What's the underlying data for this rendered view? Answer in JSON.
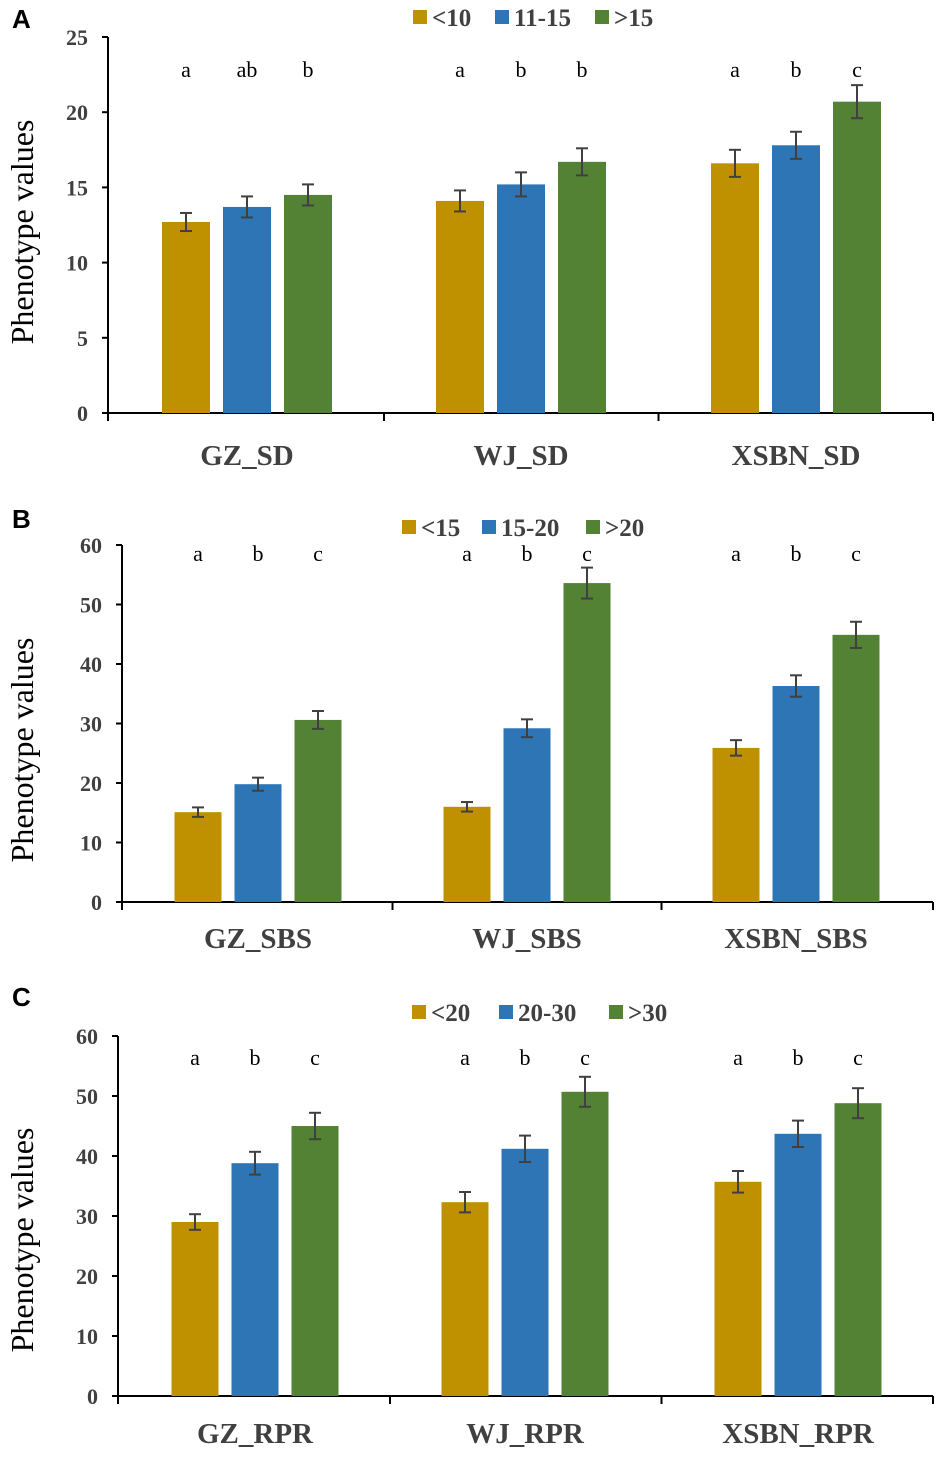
{
  "chart_data": [
    {
      "type": "bar",
      "panel_label": "A",
      "ylabel": "Phenotype values",
      "ylim": [
        0,
        25
      ],
      "yticks": [
        0,
        5,
        10,
        15,
        20,
        25
      ],
      "categories": [
        "GZ_SD",
        "WJ_SD",
        "XSBN_SD"
      ],
      "legend_position": "top-center",
      "grid": false,
      "series": [
        {
          "name": "<10",
          "color": "#BF9000",
          "values": [
            12.7,
            14.1,
            16.6
          ],
          "errors": [
            0.6,
            0.7,
            0.9
          ]
        },
        {
          "name": "11-15",
          "color": "#2E75B6",
          "values": [
            13.7,
            15.2,
            17.8
          ],
          "errors": [
            0.7,
            0.8,
            0.9
          ]
        },
        {
          "name": ">15",
          "color": "#548235",
          "values": [
            14.5,
            16.7,
            20.7
          ],
          "errors": [
            0.7,
            0.9,
            1.1
          ]
        }
      ],
      "significance": [
        [
          "a",
          "ab",
          "b"
        ],
        [
          "a",
          "b",
          "b"
        ],
        [
          "a",
          "b",
          "c"
        ]
      ]
    },
    {
      "type": "bar",
      "panel_label": "B",
      "ylabel": "Phenotype values",
      "ylim": [
        0,
        60
      ],
      "yticks": [
        0,
        10,
        20,
        30,
        40,
        50,
        60
      ],
      "categories": [
        "GZ_SBS",
        "WJ_SBS",
        "XSBN_SBS"
      ],
      "legend_position": "top-center",
      "grid": false,
      "series": [
        {
          "name": "<15",
          "color": "#BF9000",
          "values": [
            15.1,
            16.0,
            25.9
          ],
          "errors": [
            0.8,
            0.8,
            1.3
          ]
        },
        {
          "name": "15-20",
          "color": "#2E75B6",
          "values": [
            19.8,
            29.2,
            36.3
          ],
          "errors": [
            1.1,
            1.5,
            1.8
          ]
        },
        {
          "name": ">20",
          "color": "#548235",
          "values": [
            30.6,
            53.6,
            44.9
          ],
          "errors": [
            1.5,
            2.6,
            2.2
          ]
        }
      ],
      "significance": [
        [
          "a",
          "b",
          "c"
        ],
        [
          "a",
          "b",
          "c"
        ],
        [
          "a",
          "b",
          "c"
        ]
      ]
    },
    {
      "type": "bar",
      "panel_label": "C",
      "ylabel": "Phenotype values",
      "ylim": [
        0,
        60
      ],
      "yticks": [
        0,
        10,
        20,
        30,
        40,
        50,
        60
      ],
      "categories": [
        "GZ_RPR",
        "WJ_RPR",
        "XSBN_RPR"
      ],
      "legend_position": "top-center",
      "grid": false,
      "series": [
        {
          "name": "<20",
          "color": "#BF9000",
          "values": [
            29.0,
            32.3,
            35.7
          ],
          "errors": [
            1.3,
            1.7,
            1.8
          ]
        },
        {
          "name": "20-30",
          "color": "#2E75B6",
          "values": [
            38.8,
            41.2,
            43.7
          ],
          "errors": [
            1.9,
            2.2,
            2.2
          ]
        },
        {
          "name": ">30",
          "color": "#548235",
          "values": [
            45.0,
            50.7,
            48.8
          ],
          "errors": [
            2.2,
            2.5,
            2.5
          ]
        }
      ],
      "significance": [
        [
          "a",
          "b",
          "c"
        ],
        [
          "a",
          "b",
          "c"
        ],
        [
          "a",
          "b",
          "c"
        ]
      ]
    }
  ]
}
